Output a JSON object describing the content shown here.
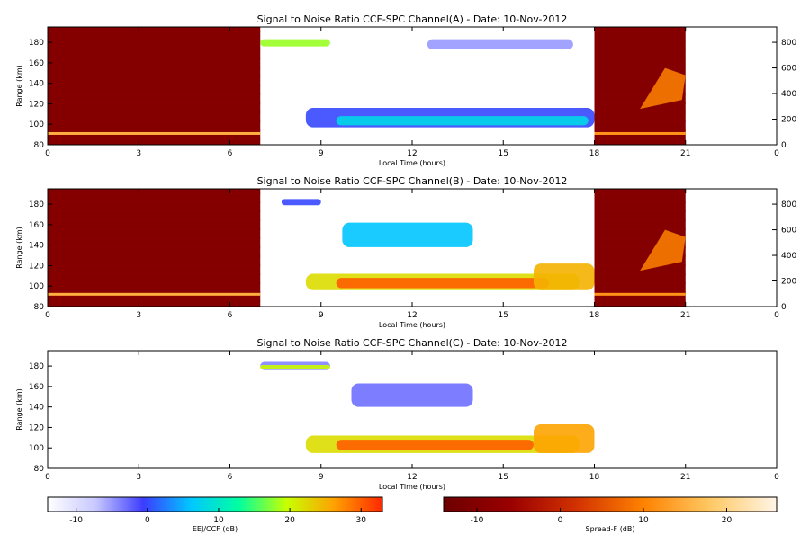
{
  "chart_data": [
    {
      "type": "heatmap",
      "title": "Signal to Noise Ratio CCF-SPC Channel(A) - Date: 10-Nov-2012",
      "xlabel": "Local Time (hours)",
      "ylabel": "Range (km)",
      "x_ticks": [
        "0",
        "3",
        "6",
        "9",
        "12",
        "15",
        "18",
        "21",
        "0"
      ],
      "y_ticks": [
        "80",
        "100",
        "120",
        "140",
        "160",
        "180"
      ],
      "y2_ticks": [
        "0",
        "200",
        "400",
        "600",
        "800"
      ],
      "xlim": [
        0,
        24
      ],
      "ylim": [
        80,
        195
      ],
      "y2lim": [
        0,
        920
      ],
      "segments": [
        {
          "colormap": "spreadf",
          "x": [
            0,
            7
          ],
          "y": [
            80,
            195
          ],
          "level": -10
        },
        {
          "colormap": "spreadf",
          "x": [
            18,
            21
          ],
          "y": [
            80,
            195
          ],
          "level": -10
        }
      ],
      "features": [
        {
          "kind": "line",
          "colormap": "spreadf",
          "x": [
            0,
            7
          ],
          "y": 91,
          "level": 15
        },
        {
          "kind": "line",
          "colormap": "spreadf",
          "x": [
            18,
            21
          ],
          "y": 91,
          "level": 12
        },
        {
          "kind": "band",
          "colormap": "eej",
          "x": [
            7,
            9.3
          ],
          "y": [
            176,
            183
          ],
          "level": 18
        },
        {
          "kind": "band",
          "colormap": "eej",
          "x": [
            8.5,
            18
          ],
          "y": [
            97,
            116
          ],
          "level": 0
        },
        {
          "kind": "band",
          "colormap": "eej",
          "x": [
            9.5,
            17.8
          ],
          "y": [
            99,
            108
          ],
          "level": 8
        },
        {
          "kind": "band",
          "colormap": "eej",
          "x": [
            12.5,
            17.3
          ],
          "y": [
            173,
            183
          ],
          "level": -5
        },
        {
          "kind": "spread",
          "colormap": "spreadf",
          "x": [
            19.5,
            21
          ],
          "y2": [
            280,
            600
          ],
          "level": 10
        }
      ]
    },
    {
      "type": "heatmap",
      "title": "Signal to Noise Ratio CCF-SPC Channel(B) - Date: 10-Nov-2012",
      "xlabel": "Local Time (hours)",
      "ylabel": "Range (km)",
      "x_ticks": [
        "0",
        "3",
        "6",
        "9",
        "12",
        "15",
        "18",
        "21",
        "0"
      ],
      "y_ticks": [
        "80",
        "100",
        "120",
        "140",
        "160",
        "180"
      ],
      "y2_ticks": [
        "0",
        "200",
        "400",
        "600",
        "800"
      ],
      "xlim": [
        0,
        24
      ],
      "ylim": [
        80,
        195
      ],
      "y2lim": [
        0,
        920
      ],
      "segments": [
        {
          "colormap": "spreadf",
          "x": [
            0,
            7
          ],
          "y": [
            80,
            195
          ],
          "level": -10
        },
        {
          "colormap": "spreadf",
          "x": [
            18,
            21
          ],
          "y": [
            80,
            195
          ],
          "level": -10
        }
      ],
      "features": [
        {
          "kind": "line",
          "colormap": "spreadf",
          "x": [
            0,
            7
          ],
          "y": 92,
          "level": 15
        },
        {
          "kind": "line",
          "colormap": "spreadf",
          "x": [
            18,
            21
          ],
          "y": 92,
          "level": 12
        },
        {
          "kind": "band",
          "colormap": "eej",
          "x": [
            7.7,
            9
          ],
          "y": [
            179,
            185
          ],
          "level": 0
        },
        {
          "kind": "band",
          "colormap": "eej",
          "x": [
            8.5,
            17.5
          ],
          "y": [
            96,
            112
          ],
          "level": 22
        },
        {
          "kind": "band",
          "colormap": "eej",
          "x": [
            9.5,
            16.5
          ],
          "y": [
            98,
            108
          ],
          "level": 30
        },
        {
          "kind": "band",
          "colormap": "eej",
          "x": [
            16,
            18
          ],
          "y": [
            96,
            122
          ],
          "level": 25
        },
        {
          "kind": "band",
          "colormap": "eej",
          "x": [
            9.7,
            14
          ],
          "y": [
            138,
            162
          ],
          "level": 6
        },
        {
          "kind": "spread",
          "colormap": "spreadf",
          "x": [
            19.5,
            21
          ],
          "y2": [
            280,
            600
          ],
          "level": 10
        }
      ]
    },
    {
      "type": "heatmap",
      "title": "Signal to Noise Ratio CCF-SPC Channel(C) - Date: 10-Nov-2012",
      "xlabel": "Local Time (hours)",
      "ylabel": "Range (km)",
      "x_ticks": [
        "0",
        "3",
        "6",
        "9",
        "12",
        "15",
        "18",
        "21",
        "0"
      ],
      "y_ticks": [
        "80",
        "100",
        "120",
        "140",
        "160",
        "180"
      ],
      "xlim": [
        0,
        24
      ],
      "ylim": [
        80,
        195
      ],
      "segments": [],
      "features": [
        {
          "kind": "band",
          "colormap": "eej",
          "x": [
            7,
            9.3
          ],
          "y": [
            176,
            184
          ],
          "level": -4
        },
        {
          "kind": "band",
          "colormap": "eej",
          "x": [
            7,
            9.3
          ],
          "y": [
            177,
            181
          ],
          "level": 20
        },
        {
          "kind": "band",
          "colormap": "eej",
          "x": [
            8.5,
            17.5
          ],
          "y": [
            95,
            112
          ],
          "level": 22
        },
        {
          "kind": "band",
          "colormap": "eej",
          "x": [
            9.5,
            16
          ],
          "y": [
            98,
            108
          ],
          "level": 30
        },
        {
          "kind": "band",
          "colormap": "eej",
          "x": [
            16,
            18
          ],
          "y": [
            95,
            123
          ],
          "level": 26
        },
        {
          "kind": "band",
          "colormap": "eej",
          "x": [
            10,
            14
          ],
          "y": [
            140,
            163
          ],
          "level": -3
        }
      ]
    }
  ],
  "colorbars": [
    {
      "name": "eej",
      "label": "EEJ/CCF (dB)",
      "ticks": [
        "-10",
        "0",
        "10",
        "20",
        "30"
      ],
      "range": [
        -14,
        33
      ],
      "stops": [
        "#ffffff",
        "#c8c8ff",
        "#3c3cff",
        "#00c8ff",
        "#00ffa0",
        "#c8ff00",
        "#ffa000",
        "#ff2800"
      ]
    },
    {
      "name": "spreadf",
      "label": "Spread-F (dB)",
      "ticks": [
        "-10",
        "0",
        "10",
        "20"
      ],
      "range": [
        -14,
        26
      ],
      "stops": [
        "#6e0000",
        "#9a0000",
        "#d23200",
        "#ff8200",
        "#ffc864",
        "#fff5e6"
      ]
    }
  ]
}
